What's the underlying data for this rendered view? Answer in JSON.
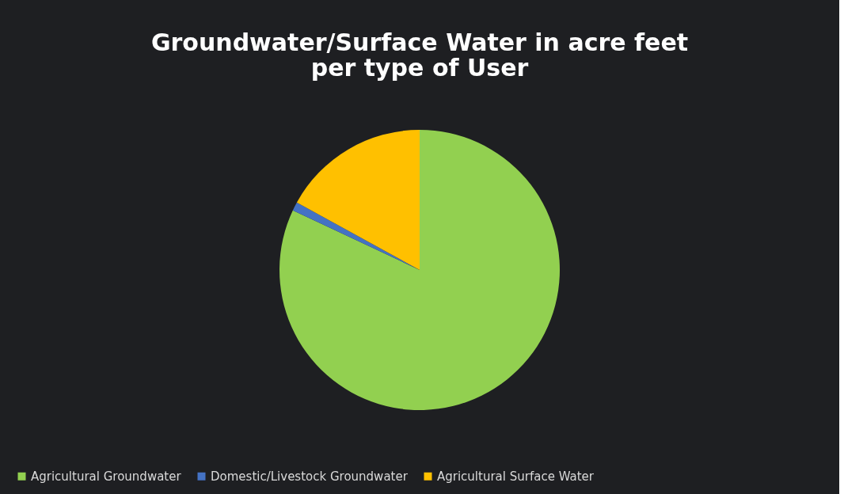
{
  "chart_data": {
    "type": "pie",
    "title": [
      "Groundwater/Surface Water in acre feet",
      "per type of User"
    ],
    "categories": [
      "Agricultural Groundwater",
      "Domestic/Livestock Groundwater",
      "Agricultural Surface Water"
    ],
    "values": [
      82,
      1,
      17
    ],
    "colors": [
      "#92d050",
      "#4472c4",
      "#ffc000"
    ],
    "legend": "bottom"
  }
}
